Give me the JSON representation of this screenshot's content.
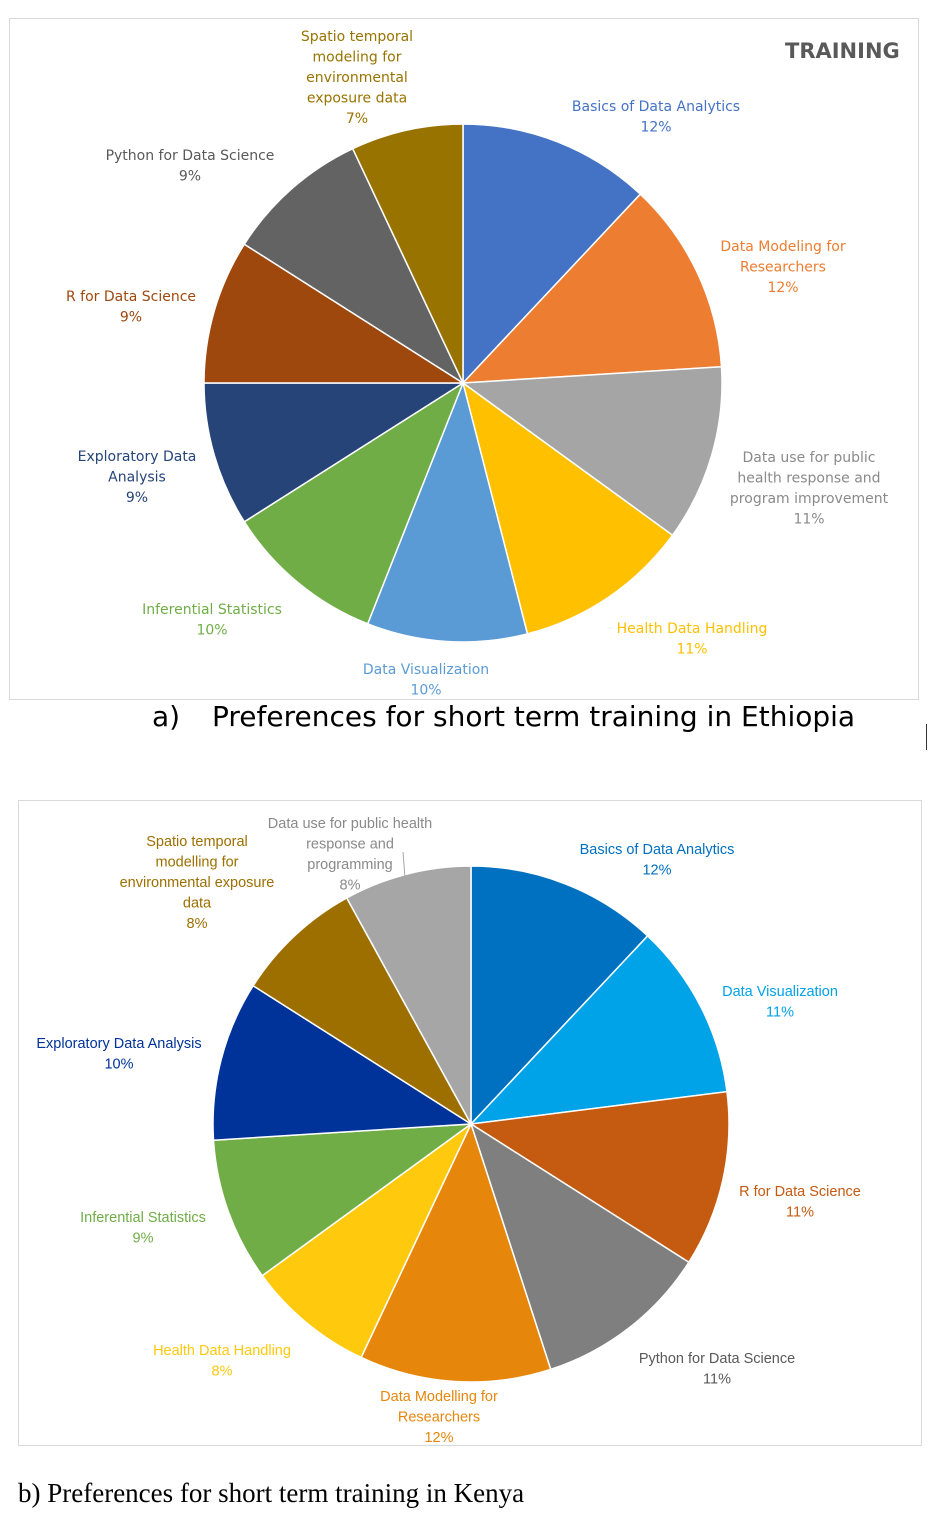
{
  "chart_data": [
    {
      "type": "pie",
      "title": "TRAINING",
      "caption_letter": "a)",
      "caption_text": "Preferences for short term training in Ethiopia",
      "slices": [
        {
          "label": [
            "Basics of Data Analytics"
          ],
          "pct": "12%",
          "value": 12,
          "color": "#4472C4"
        },
        {
          "label": [
            "Data Modeling for",
            "Researchers"
          ],
          "pct": "12%",
          "value": 12,
          "color": "#ED7D31"
        },
        {
          "label": [
            "Data use for public",
            "health response and",
            "program improvement"
          ],
          "pct": "11%",
          "value": 11,
          "color": "#A5A5A5"
        },
        {
          "label": [
            "Health Data Handling"
          ],
          "pct": "11%",
          "value": 11,
          "color": "#FFC000"
        },
        {
          "label": [
            "Data Visualization"
          ],
          "pct": "10%",
          "value": 10,
          "color": "#5B9BD5"
        },
        {
          "label": [
            "Inferential Statistics"
          ],
          "pct": "10%",
          "value": 10,
          "color": "#70AD47"
        },
        {
          "label": [
            "Exploratory Data",
            "Analysis"
          ],
          "pct": "9%",
          "value": 9,
          "color": "#264478"
        },
        {
          "label": [
            "R for Data Science"
          ],
          "pct": "9%",
          "value": 9,
          "color": "#9E480E"
        },
        {
          "label": [
            "Python for Data Science"
          ],
          "pct": "9%",
          "value": 9,
          "color": "#636363"
        },
        {
          "label": [
            "Spatio temporal",
            "modeling for",
            "environmental",
            "exposure data"
          ],
          "pct": "7%",
          "value": 7,
          "color": "#997300"
        }
      ]
    },
    {
      "type": "pie",
      "title": "",
      "caption_text": "b) Preferences for short term training in Kenya",
      "slices": [
        {
          "label": [
            "Basics of Data Analytics"
          ],
          "pct": "12%",
          "value": 12,
          "color": "#0070C0"
        },
        {
          "label": [
            "Data Visualization"
          ],
          "pct": "11%",
          "value": 11,
          "color": "#00A2E8"
        },
        {
          "label": [
            "R for Data Science"
          ],
          "pct": "11%",
          "value": 11,
          "color": "#C55A11"
        },
        {
          "label": [
            "Python for Data Science"
          ],
          "pct": "11%",
          "value": 11,
          "color": "#7F7F7F"
        },
        {
          "label": [
            "Data Modelling for",
            "Researchers"
          ],
          "pct": "12%",
          "value": 12,
          "color": "#E6870B"
        },
        {
          "label": [
            "Health Data Handling"
          ],
          "pct": "8%",
          "value": 8,
          "color": "#FFC90E"
        },
        {
          "label": [
            "Inferential Statistics"
          ],
          "pct": "9%",
          "value": 9,
          "color": "#70AD47"
        },
        {
          "label": [
            "Exploratory Data Analysis"
          ],
          "pct": "10%",
          "value": 10,
          "color": "#003399"
        },
        {
          "label": [
            "Spatio temporal",
            "modelling for",
            "environmental exposure",
            "data"
          ],
          "pct": "8%",
          "value": 8,
          "color": "#9C6F00"
        },
        {
          "label": [
            "Data use for public health",
            "response and",
            "programming"
          ],
          "pct": "8%",
          "value": 8,
          "color": "#A6A6A6"
        }
      ]
    }
  ]
}
